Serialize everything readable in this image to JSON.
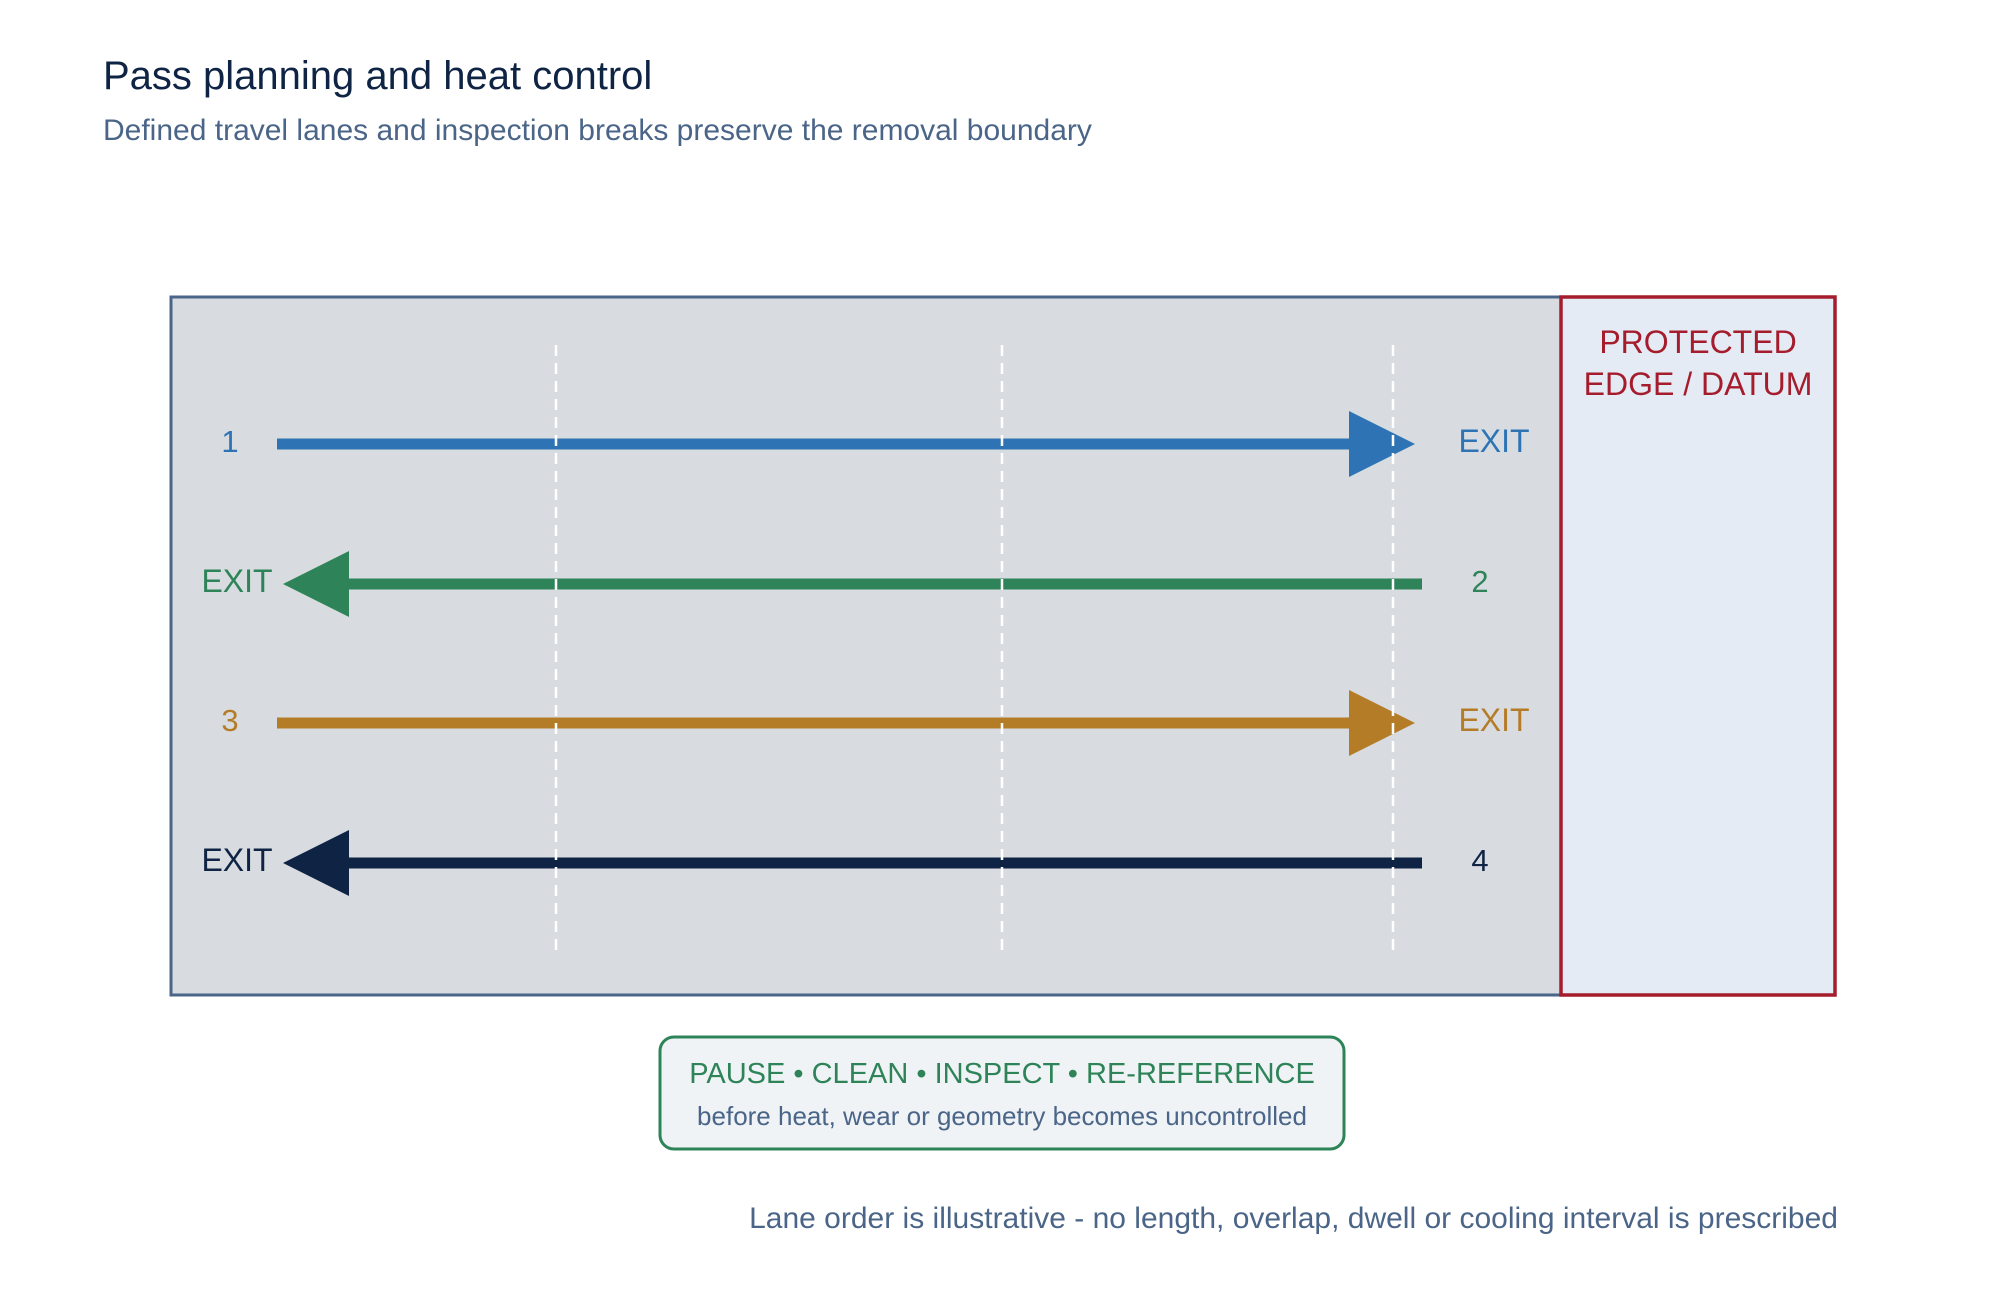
{
  "title": "Pass planning and heat control",
  "subtitle": "Defined travel lanes and inspection breaks preserve the removal boundary",
  "protected_zone": {
    "line1": "PROTECTED",
    "line2": "EDGE / DATUM"
  },
  "lanes": [
    {
      "number": "1",
      "exit": "EXIT",
      "direction": "right",
      "color": "#2e74b5"
    },
    {
      "number": "2",
      "exit": "EXIT",
      "direction": "left",
      "color": "#2e8458"
    },
    {
      "number": "3",
      "exit": "EXIT",
      "direction": "right",
      "color": "#b57c28"
    },
    {
      "number": "4",
      "exit": "EXIT",
      "direction": "left",
      "color": "#0f2444"
    }
  ],
  "callout": {
    "heading": "PAUSE • CLEAN • INSPECT • RE-REFERENCE",
    "text": "before heat, wear or geometry becomes uncontrolled"
  },
  "footnote": "Lane order is illustrative - no length, overlap, dwell or cooling interval is prescribed",
  "colors": {
    "work_area_fill": "#d8dce0",
    "work_area_border": "#4a6587",
    "protected_fill": "#e5ebf4",
    "protected_border": "#a51d2d",
    "callout_border": "#2e8458",
    "callout_fill": "#eff3f6",
    "inspection_break": "#ffffff"
  }
}
